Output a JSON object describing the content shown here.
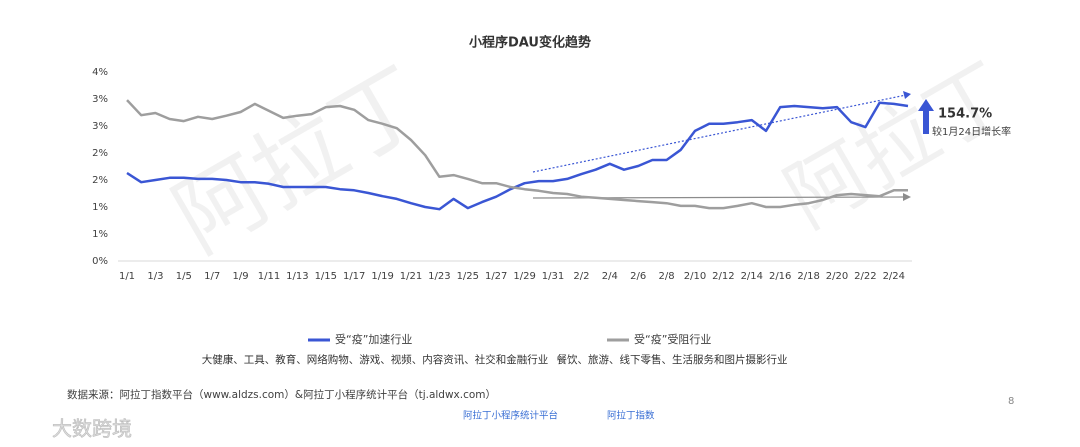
{
  "chart_data": {
    "type": "line",
    "title": "小程序DAU变化趋势",
    "categories": [
      "1/1",
      null,
      "1/3",
      null,
      "1/5",
      null,
      "1/7",
      null,
      "1/9",
      null,
      "1/11",
      null,
      "1/13",
      null,
      "1/15",
      null,
      "1/17",
      null,
      "1/19",
      null,
      "1/21",
      null,
      "1/23",
      null,
      "1/25",
      null,
      "1/27",
      null,
      "1/29",
      null,
      "1/31",
      null,
      "2/2",
      null,
      "2/4",
      null,
      "2/6",
      null,
      "2/8",
      null,
      "2/10",
      null,
      "2/12",
      null,
      "2/14",
      null,
      "2/16",
      null,
      "2/18",
      null,
      "2/20",
      null,
      "2/22",
      null,
      "2/24",
      null
    ],
    "series": [
      {
        "name": "受“疫”加速行业",
        "description": "大健康、工具、教育、网络购物、游戏、视频、内容资讯、社交和金融行业",
        "color": "#3a56d4",
        "values": [
          1.63,
          1.46,
          1.5,
          1.54,
          1.54,
          1.52,
          1.52,
          1.5,
          1.46,
          1.46,
          1.43,
          1.37,
          1.37,
          1.37,
          1.37,
          1.33,
          1.31,
          1.26,
          1.2,
          1.15,
          1.07,
          1.0,
          0.96,
          1.15,
          0.98,
          1.09,
          1.19,
          1.33,
          1.44,
          1.48,
          1.48,
          1.52,
          1.61,
          1.69,
          1.8,
          1.69,
          1.76,
          1.87,
          1.87,
          2.06,
          2.41,
          2.54,
          2.54,
          2.57,
          2.61,
          2.41,
          2.85,
          2.87,
          2.85,
          2.83,
          2.85,
          2.57,
          2.48,
          2.93,
          2.91,
          2.87
        ]
      },
      {
        "name": "受“疫”受阻行业",
        "description": "餐饮、旅游、线下零售、生活服务和图片摄影行业",
        "color": "#9e9e9e",
        "values": [
          2.98,
          2.7,
          2.74,
          2.63,
          2.59,
          2.67,
          2.63,
          2.69,
          2.76,
          2.91,
          2.78,
          2.65,
          2.69,
          2.72,
          2.85,
          2.87,
          2.8,
          2.61,
          2.54,
          2.46,
          2.24,
          1.96,
          1.56,
          1.59,
          1.52,
          1.44,
          1.44,
          1.37,
          1.33,
          1.3,
          1.26,
          1.24,
          1.19,
          1.17,
          1.15,
          1.13,
          1.11,
          1.09,
          1.07,
          1.02,
          1.02,
          0.98,
          0.98,
          1.02,
          1.07,
          1.0,
          1.0,
          1.04,
          1.07,
          1.13,
          1.22,
          1.24,
          1.22,
          1.2,
          1.31,
          1.31
        ]
      }
    ],
    "ylim": [
      0,
      3.5
    ],
    "yticks": [
      {
        "value": 0,
        "label": "0%"
      },
      {
        "value": 0.5,
        "label": "1%"
      },
      {
        "value": 1,
        "label": "1%"
      },
      {
        "value": 1.5,
        "label": "2%"
      },
      {
        "value": 2,
        "label": "2%"
      },
      {
        "value": 2.5,
        "label": "3%"
      },
      {
        "value": 3,
        "label": "3%"
      },
      {
        "value": 3.5,
        "label": "4%"
      }
    ],
    "grid": false,
    "annotations": {
      "growth": "154.7%",
      "growth_note": "较1月24日增长率"
    }
  },
  "footer": {
    "source": "数据来源：阿拉丁指数平台（www.aldzs.com）&阿拉丁小程序统计平台（tj.aldwx.com）",
    "page": "8",
    "logos": [
      "阿拉丁小程序统计平台",
      "阿拉丁指数"
    ]
  },
  "watermarks": [
    "阿拉丁",
    "阿拉丁",
    "大数跨境"
  ]
}
